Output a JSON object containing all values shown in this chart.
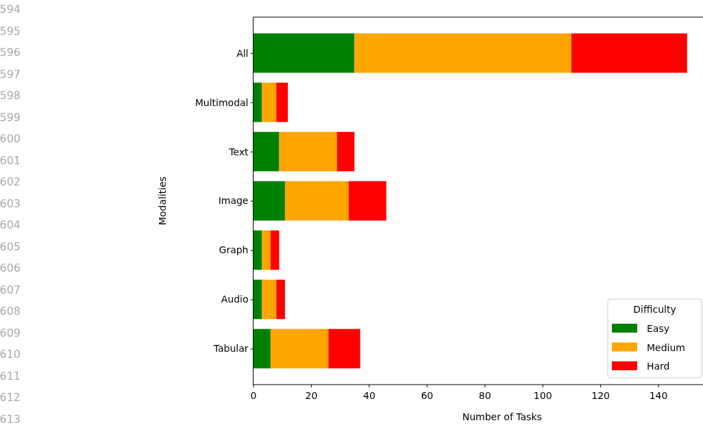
{
  "chart_data": {
    "type": "bar",
    "orientation": "horizontal",
    "stacked": true,
    "xlabel": "Number of Tasks",
    "ylabel": "Modalities",
    "categories": [
      "All",
      "Multimodal",
      "Text",
      "Image",
      "Graph",
      "Audio",
      "Tabular"
    ],
    "series": [
      {
        "name": "Easy",
        "color": "#008000",
        "values": [
          35,
          3,
          9,
          11,
          3,
          3,
          6
        ]
      },
      {
        "name": "Medium",
        "color": "#ffa500",
        "values": [
          75,
          5,
          20,
          22,
          3,
          5,
          20
        ]
      },
      {
        "name": "Hard",
        "color": "#ff0000",
        "values": [
          40,
          4,
          6,
          13,
          3,
          3,
          11
        ]
      }
    ],
    "xlim": [
      0,
      155.5
    ],
    "xticks": [
      0,
      20,
      40,
      60,
      80,
      100,
      120,
      140
    ],
    "legend": "bottom right",
    "legend_title": "Difficulty",
    "grid": false,
    "annotations": [
      "594",
      "595",
      "596",
      "597",
      "598",
      "599",
      "600",
      "601",
      "602",
      "603",
      "604",
      "605",
      "606",
      "607",
      "608",
      "609",
      "610",
      "611",
      "612",
      "613"
    ]
  }
}
